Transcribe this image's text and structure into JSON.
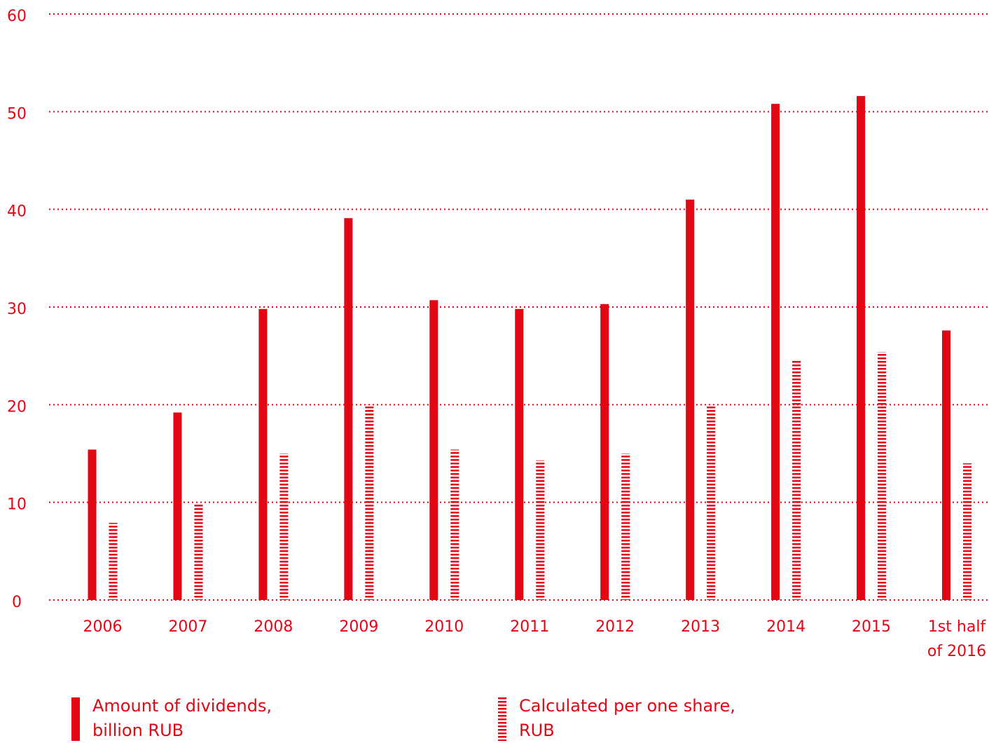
{
  "theme": {
    "accent": "#e30613"
  },
  "chart_data": {
    "type": "bar",
    "categories": [
      [
        "2006"
      ],
      [
        "2007"
      ],
      [
        "2008"
      ],
      [
        "2009"
      ],
      [
        "2010"
      ],
      [
        "2011"
      ],
      [
        "2012"
      ],
      [
        "2013"
      ],
      [
        "2014"
      ],
      [
        "2015"
      ],
      [
        "1st half",
        "of 2016"
      ]
    ],
    "series": [
      {
        "name": "Amount of dividends, billion RUB",
        "style": "solid",
        "values": [
          15.4,
          19.2,
          29.8,
          39.1,
          30.7,
          29.8,
          30.3,
          41.0,
          50.8,
          51.6,
          27.6
        ]
      },
      {
        "name": "Calculated per one share, RUB",
        "style": "striped",
        "values": [
          7.9,
          9.8,
          15.0,
          20.0,
          15.4,
          14.3,
          15.0,
          20.0,
          24.6,
          25.4,
          14.0
        ]
      }
    ],
    "ylim": [
      0,
      60
    ],
    "yticks": [
      0,
      10,
      20,
      30,
      40,
      50,
      60
    ],
    "grid": "dotted horizontal",
    "legend_position": "bottom"
  },
  "legend": [
    {
      "lines": [
        "Amount of dividends,",
        "billion RUB"
      ]
    },
    {
      "lines": [
        "Calculated per one share,",
        "RUB"
      ]
    }
  ]
}
